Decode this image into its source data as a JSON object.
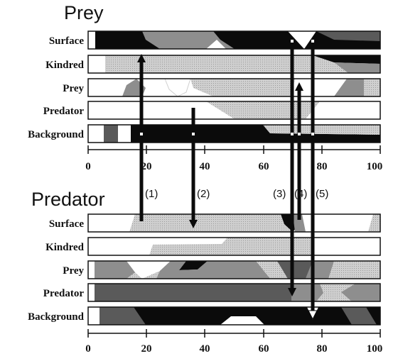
{
  "panels": [
    {
      "title": "Prey",
      "rows": [
        "Surface",
        "Kindred",
        "Prey",
        "Predator",
        "Background"
      ],
      "axis": {
        "min": 0,
        "max": 100,
        "ticks": [
          "0",
          "20",
          "40",
          "60",
          "80",
          "100"
        ]
      }
    },
    {
      "title": "Predator",
      "rows": [
        "Surface",
        "Kindred",
        "Prey",
        "Predator",
        "Background"
      ],
      "axis": {
        "min": 0,
        "max": 100,
        "ticks": [
          "0",
          "20",
          "40",
          "60",
          "80",
          "100"
        ]
      }
    }
  ],
  "events": [
    "(1)",
    "(2)",
    "(3)",
    "(4)",
    "(5)"
  ],
  "colors": {
    "black": "#0b0b0b",
    "dark": "#5a5a5a",
    "mid": "#8e8e8e",
    "light": "#c4c4c4",
    "white": "#ffffff"
  }
}
